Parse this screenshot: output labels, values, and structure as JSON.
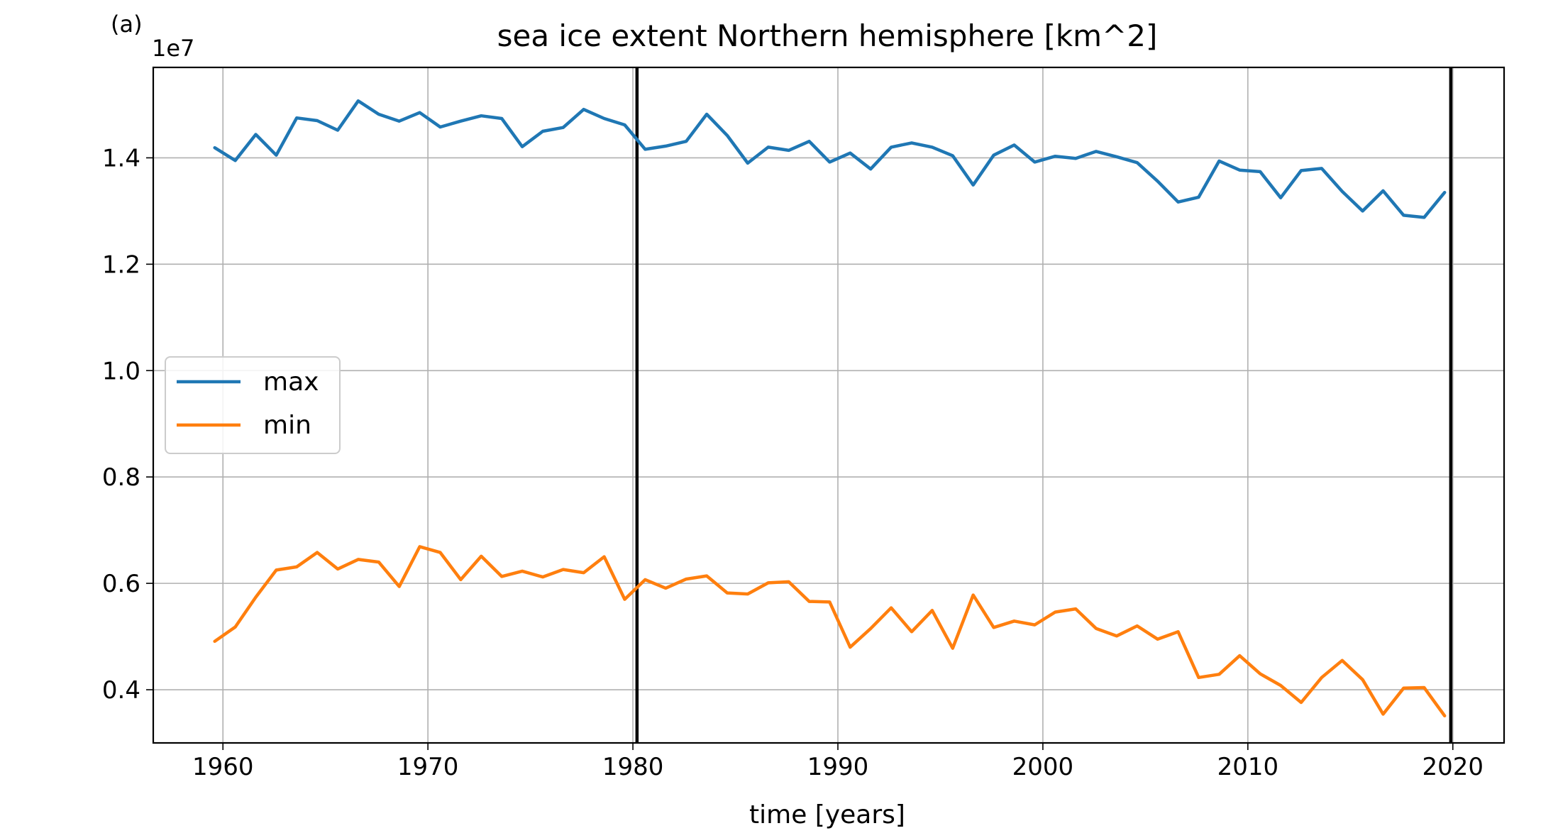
{
  "panel_label": "(a)",
  "chart_data": {
    "type": "line",
    "title": "sea ice extent Northern hemisphere [km^2]",
    "xlabel": "time [years]",
    "ylabel": "",
    "y_offset_label": "1e7",
    "xlim": [
      1956.6,
      2022.5
    ],
    "ylim": [
      0.3,
      1.57
    ],
    "x_ticks": [
      1960,
      1970,
      1980,
      1990,
      2000,
      2010,
      2020
    ],
    "x_tick_labels": [
      "1960",
      "1970",
      "1980",
      "1990",
      "2000",
      "2010",
      "2020"
    ],
    "y_ticks": [
      0.4,
      0.6,
      0.8,
      1.0,
      1.2,
      1.4
    ],
    "y_tick_labels": [
      "0.4",
      "0.6",
      "0.8",
      "1.0",
      "1.2",
      "1.4"
    ],
    "grid": true,
    "legend_position": "center-left",
    "vertical_lines": [
      1980.2,
      2019.9
    ],
    "x": [
      1959.6,
      1960.6,
      1961.6,
      1962.6,
      1963.6,
      1964.6,
      1965.6,
      1966.6,
      1967.6,
      1968.6,
      1969.6,
      1970.6,
      1971.6,
      1972.6,
      1973.6,
      1974.6,
      1975.6,
      1976.6,
      1977.6,
      1978.6,
      1979.6,
      1980.6,
      1981.6,
      1982.6,
      1983.6,
      1984.6,
      1985.6,
      1986.6,
      1987.6,
      1988.6,
      1989.6,
      1990.6,
      1991.6,
      1992.6,
      1993.6,
      1994.6,
      1995.6,
      1996.6,
      1997.6,
      1998.6,
      1999.6,
      2000.6,
      2001.6,
      2002.6,
      2003.6,
      2004.6,
      2005.6,
      2006.6,
      2007.6,
      2008.6,
      2009.6,
      2010.6,
      2011.6,
      2012.6,
      2013.6,
      2014.6,
      2015.6,
      2016.6,
      2017.6,
      2018.6,
      2019.6
    ],
    "series": [
      {
        "name": "max",
        "color": "#1f77b4",
        "values": [
          1.419,
          1.395,
          1.444,
          1.405,
          1.475,
          1.47,
          1.452,
          1.507,
          1.482,
          1.469,
          1.485,
          1.458,
          1.469,
          1.479,
          1.474,
          1.421,
          1.45,
          1.457,
          1.491,
          1.474,
          1.462,
          1.416,
          1.422,
          1.431,
          1.482,
          1.442,
          1.39,
          1.42,
          1.414,
          1.431,
          1.392,
          1.409,
          1.379,
          1.42,
          1.428,
          1.42,
          1.404,
          1.349,
          1.405,
          1.424,
          1.392,
          1.403,
          1.399,
          1.412,
          1.402,
          1.391,
          1.356,
          1.317,
          1.326,
          1.394,
          1.377,
          1.374,
          1.325,
          1.376,
          1.38,
          1.337,
          1.3,
          1.338,
          1.292,
          1.288,
          1.335
        ]
      },
      {
        "name": "min",
        "color": "#ff7f0e",
        "values": [
          0.491,
          0.518,
          0.574,
          0.625,
          0.631,
          0.658,
          0.627,
          0.645,
          0.64,
          0.594,
          0.669,
          0.658,
          0.607,
          0.651,
          0.613,
          0.623,
          0.612,
          0.626,
          0.62,
          0.65,
          0.57,
          0.607,
          0.591,
          0.608,
          0.614,
          0.582,
          0.58,
          0.601,
          0.603,
          0.566,
          0.565,
          0.48,
          0.515,
          0.554,
          0.509,
          0.549,
          0.478,
          0.578,
          0.517,
          0.529,
          0.522,
          0.546,
          0.552,
          0.515,
          0.501,
          0.52,
          0.495,
          0.509,
          0.423,
          0.429,
          0.464,
          0.43,
          0.408,
          0.376,
          0.423,
          0.455,
          0.419,
          0.354,
          0.403,
          0.404,
          0.351
        ]
      }
    ]
  }
}
